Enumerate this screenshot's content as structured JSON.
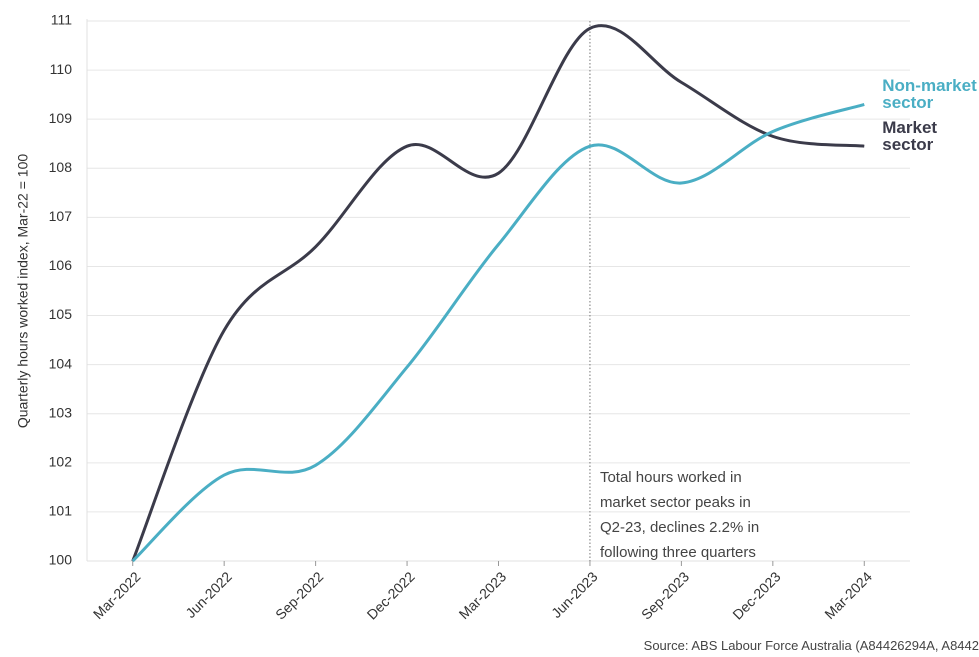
{
  "chart_data": {
    "type": "line",
    "y_label": "Quarterly hours worked index, Mar-22 = 100",
    "categories": [
      "Mar-2022",
      "Jun-2022",
      "Sep-2022",
      "Dec-2022",
      "Mar-2023",
      "Jun-2023",
      "Sep-2023",
      "Dec-2023",
      "Mar-2024"
    ],
    "series": [
      {
        "name": "Market sector",
        "color": "#3b3b4a",
        "values": [
          100,
          104.7,
          106.4,
          108.45,
          107.9,
          110.85,
          109.75,
          108.65,
          108.45
        ]
      },
      {
        "name": "Non-market sector",
        "color": "#4aaec4",
        "values": [
          100,
          101.75,
          101.95,
          103.95,
          106.45,
          108.45,
          107.7,
          108.75,
          109.3
        ]
      }
    ],
    "ylim": [
      100,
      111
    ],
    "yticks": [
      100,
      101,
      102,
      103,
      104,
      105,
      106,
      107,
      108,
      109,
      110,
      111
    ],
    "grid": true,
    "annotation": [
      "Total hours worked in",
      "market sector peaks in",
      "Q2-23, declines 2.2% in",
      "following three quarters"
    ],
    "source": "Source: ABS Labour Force Australia (A84426294A, A8442"
  }
}
